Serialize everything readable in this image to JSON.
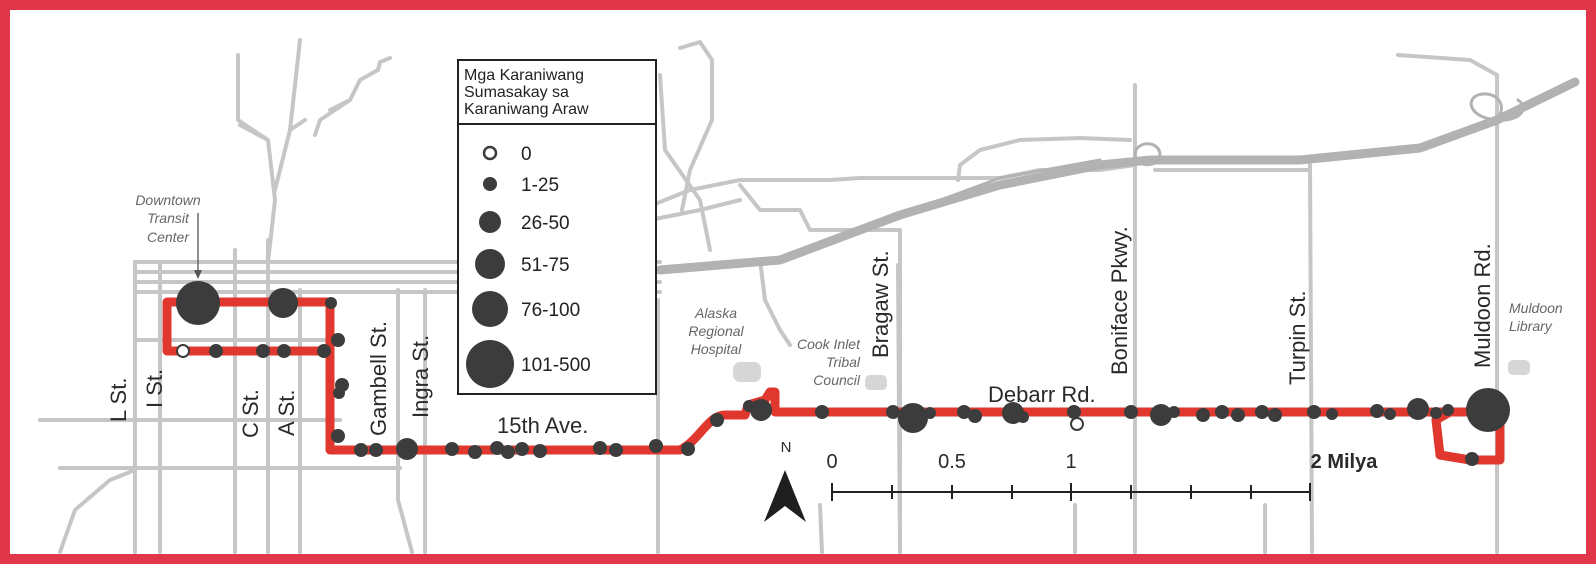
{
  "colors": {
    "frame": "#e0384a",
    "route": "#e0382e",
    "road": "#c6c6c6",
    "highway": "#b2b2b2",
    "stop": "#3c3c3c",
    "label": "#2a2a2a",
    "place": "#666666"
  },
  "legend": {
    "title": [
      "Mga Karaniwang",
      "Sumasakay sa",
      "Karaniwang Araw"
    ],
    "items": [
      {
        "label": "0",
        "kind": "empty"
      },
      {
        "label": "1-25",
        "kind": "filled"
      },
      {
        "label": "26-50",
        "kind": "filled"
      },
      {
        "label": "51-75",
        "kind": "filled"
      },
      {
        "label": "76-100",
        "kind": "filled"
      },
      {
        "label": "101-500",
        "kind": "filled"
      }
    ]
  },
  "streets": {
    "l": "L St.",
    "i": "I St.",
    "c": "C St.",
    "a": "A St.",
    "gambell": "Gambell St.",
    "ingra": "Ingra St.",
    "fifteenth": "15th Ave.",
    "bragaw": "Bragaw St.",
    "debarr": "Debarr Rd.",
    "boniface": "Boniface Pkwy.",
    "turpin": "Turpin St.",
    "muldoon": "Muldoon Rd."
  },
  "places": {
    "downtown": [
      "Downtown",
      "Transit",
      "Center"
    ],
    "hospital": [
      "Alaska",
      "Regional",
      "Hospital"
    ],
    "cook_inlet": [
      "Cook Inlet",
      "Tribal",
      "Council"
    ],
    "library": [
      "Muldoon",
      "Library"
    ]
  },
  "north_arrow": "N",
  "scale_bar": {
    "ticks": [
      "0",
      "0.5",
      "1",
      "2 Milya"
    ]
  },
  "stops": [
    {
      "ridership": "76-100"
    },
    {
      "ridership": "51-75"
    },
    {
      "ridership": "1-25"
    },
    {
      "ridership": "0"
    },
    {
      "ridership": "1-25"
    },
    {
      "ridership": "1-25"
    },
    {
      "ridership": "1-25"
    },
    {
      "ridership": "1-25"
    },
    {
      "ridership": "1-25"
    },
    {
      "ridership": "1-25"
    },
    {
      "ridership": "1-25"
    },
    {
      "ridership": "1-25"
    },
    {
      "ridership": "1-25"
    },
    {
      "ridership": "1-25"
    },
    {
      "ridership": "26-50"
    },
    {
      "ridership": "1-25"
    },
    {
      "ridership": "1-25"
    },
    {
      "ridership": "1-25"
    },
    {
      "ridership": "1-25"
    },
    {
      "ridership": "1-25"
    },
    {
      "ridership": "1-25"
    },
    {
      "ridership": "1-25"
    },
    {
      "ridership": "1-25"
    },
    {
      "ridership": "1-25"
    },
    {
      "ridership": "1-25"
    },
    {
      "ridership": "1-25"
    },
    {
      "ridership": "1-25"
    },
    {
      "ridership": "26-50"
    },
    {
      "ridership": "1-25"
    },
    {
      "ridership": "1-25"
    },
    {
      "ridership": "51-75"
    },
    {
      "ridership": "1-25"
    },
    {
      "ridership": "1-25"
    },
    {
      "ridership": "1-25"
    },
    {
      "ridership": "26-50"
    },
    {
      "ridership": "1-25"
    },
    {
      "ridership": "1-25"
    },
    {
      "ridership": "0"
    },
    {
      "ridership": "1-25"
    },
    {
      "ridership": "26-50"
    },
    {
      "ridership": "1-25"
    },
    {
      "ridership": "1-25"
    },
    {
      "ridership": "1-25"
    },
    {
      "ridership": "1-25"
    },
    {
      "ridership": "1-25"
    },
    {
      "ridership": "1-25"
    },
    {
      "ridership": "1-25"
    },
    {
      "ridership": "1-25"
    },
    {
      "ridership": "1-25"
    },
    {
      "ridership": "1-25"
    },
    {
      "ridership": "26-50"
    },
    {
      "ridership": "1-25"
    },
    {
      "ridership": "1-25"
    },
    {
      "ridership": "101-500"
    },
    {
      "ridership": "1-25"
    }
  ]
}
